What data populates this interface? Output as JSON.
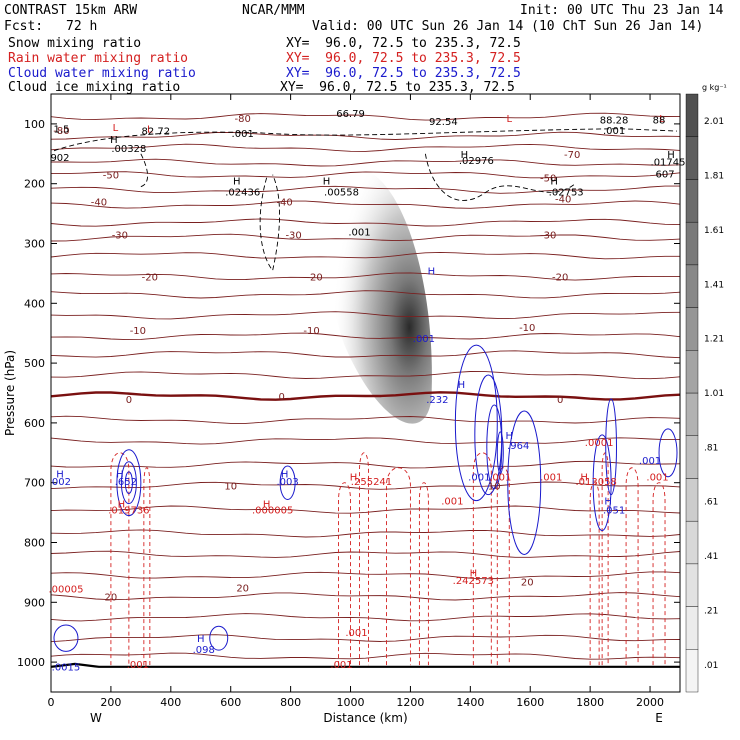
{
  "header": {
    "model": "CONTRAST 15km ARW",
    "center": "NCAR/MMM",
    "init": "Init: 00 UTC Thu 23 Jan 14",
    "fcst_label": "Fcst:",
    "fcst_value": "72 h",
    "valid": "Valid: 00 UTC Sun 26 Jan 14 (10 ChT Sun 26 Jan 14)"
  },
  "fields": [
    {
      "name": "Snow mixing ratio",
      "xy": "XY=  96.0, 72.5 to 235.3, 72.5",
      "color": "#000000"
    },
    {
      "name": "Rain water mixing ratio",
      "xy": "XY=  96.0, 72.5 to 235.3, 72.5",
      "color": "#d42020"
    },
    {
      "name": "Cloud water mixing ratio",
      "xy": "XY=  96.0, 72.5 to 235.3, 72.5",
      "color": "#1a1acc"
    },
    {
      "name": "Cloud ice mixing ratio",
      "xy": "XY=  96.0, 72.5 to 235.3, 72.5",
      "color": "#000000"
    }
  ],
  "chart_data": {
    "type": "contour",
    "xlabel": "Distance (km)",
    "ylabel": "Pressure (hPa)",
    "xlim": [
      0,
      2100
    ],
    "ylim": [
      1050,
      50
    ],
    "x_ticks": [
      0,
      200,
      400,
      600,
      800,
      1000,
      1200,
      1400,
      1600,
      1800,
      2000
    ],
    "y_ticks": [
      100,
      200,
      300,
      400,
      500,
      600,
      700,
      800,
      900,
      1000
    ],
    "x_end_labels": {
      "left": "W",
      "right": "E"
    },
    "colorbar": {
      "unit": "g kg⁻¹",
      "labels": [
        ".01",
        ".21",
        ".41",
        ".61",
        ".81",
        "1.01",
        "1.21",
        "1.41",
        "1.61",
        "1.81",
        "2.01"
      ],
      "colors": [
        "#f4f4f4",
        "#ececec",
        "#e2e2e2",
        "#d8d8d8",
        "#cccccc",
        "#c0c0c0",
        "#b2b2b2",
        "#a4a4a4",
        "#969696",
        "#888888",
        "#7a7a7a",
        "#6c6c6c",
        "#5e5e5e",
        "#505050"
      ]
    },
    "temperature_labels": [
      {
        "x": 35,
        "p": 110,
        "text": "-80"
      },
      {
        "x": 640,
        "p": 90,
        "text": "-80"
      },
      {
        "x": 1740,
        "p": 150,
        "text": "-70"
      },
      {
        "x": 200,
        "p": 185,
        "text": "-50"
      },
      {
        "x": 160,
        "p": 230,
        "text": "-40"
      },
      {
        "x": 780,
        "p": 230,
        "text": "-40"
      },
      {
        "x": 1660,
        "p": 190,
        "text": "-50"
      },
      {
        "x": 1710,
        "p": 225,
        "text": "-40"
      },
      {
        "x": 230,
        "p": 285,
        "text": "-30"
      },
      {
        "x": 810,
        "p": 285,
        "text": "-30"
      },
      {
        "x": 1660,
        "p": 285,
        "text": "-30"
      },
      {
        "x": 330,
        "p": 355,
        "text": "-20"
      },
      {
        "x": 880,
        "p": 355,
        "text": "-20"
      },
      {
        "x": 1700,
        "p": 355,
        "text": "-20"
      },
      {
        "x": 290,
        "p": 445,
        "text": "-10"
      },
      {
        "x": 870,
        "p": 445,
        "text": "-10"
      },
      {
        "x": 1590,
        "p": 440,
        "text": "-10"
      },
      {
        "x": 260,
        "p": 560,
        "text": "0"
      },
      {
        "x": 770,
        "p": 555,
        "text": "0"
      },
      {
        "x": 1700,
        "p": 560,
        "text": "0"
      },
      {
        "x": 600,
        "p": 705,
        "text": "10"
      },
      {
        "x": 1480,
        "p": 705,
        "text": "10"
      },
      {
        "x": 640,
        "p": 875,
        "text": "20"
      },
      {
        "x": 200,
        "p": 890,
        "text": "20"
      },
      {
        "x": 1590,
        "p": 865,
        "text": "20"
      }
    ],
    "hl_markers": [
      {
        "x": 215,
        "p": 105,
        "type": "L",
        "color": "#d42020"
      },
      {
        "x": 330,
        "p": 108,
        "type": "L",
        "color": "#d42020"
      },
      {
        "x": 210,
        "p": 125,
        "type": "H",
        "color": "#000000"
      },
      {
        "x": 1530,
        "p": 90,
        "type": "L",
        "color": "#d42020"
      },
      {
        "x": 1380,
        "p": 150,
        "type": "H",
        "color": "#000000"
      },
      {
        "x": 2040,
        "p": 90,
        "type": "L",
        "color": "#d42020"
      },
      {
        "x": 2070,
        "p": 150,
        "type": "H",
        "color": "#000000"
      },
      {
        "x": 620,
        "p": 195,
        "type": "H",
        "color": "#000000"
      },
      {
        "x": 920,
        "p": 195,
        "type": "H",
        "color": "#000000"
      },
      {
        "x": 1680,
        "p": 195,
        "type": "H",
        "color": "#000000"
      },
      {
        "x": 1270,
        "p": 345,
        "type": "H",
        "color": "#1a1acc"
      },
      {
        "x": 1370,
        "p": 535,
        "type": "H",
        "color": "#1a1acc"
      },
      {
        "x": 1530,
        "p": 620,
        "type": "H",
        "color": "#1a1acc"
      },
      {
        "x": 30,
        "p": 685,
        "type": "H",
        "color": "#1a1acc"
      },
      {
        "x": 230,
        "p": 685,
        "type": "H",
        "color": "#1a1acc"
      },
      {
        "x": 780,
        "p": 685,
        "type": "H",
        "color": "#1a1acc"
      },
      {
        "x": 1010,
        "p": 690,
        "type": "H",
        "color": "#d42020"
      },
      {
        "x": 1780,
        "p": 690,
        "type": "H",
        "color": "#d42020"
      },
      {
        "x": 1860,
        "p": 730,
        "type": "H",
        "color": "#1a1acc"
      },
      {
        "x": 720,
        "p": 735,
        "type": "H",
        "color": "#d42020"
      },
      {
        "x": 235,
        "p": 735,
        "type": "H",
        "color": "#d42020"
      },
      {
        "x": 1410,
        "p": 850,
        "type": "H",
        "color": "#d42020"
      },
      {
        "x": 500,
        "p": 960,
        "type": "H",
        "color": "#1a1acc"
      }
    ],
    "value_labels": [
      {
        "x": 35,
        "p": 108,
        "text": "1.5",
        "color": "#000000"
      },
      {
        "x": 350,
        "p": 111,
        "text": "82.72",
        "color": "#000000"
      },
      {
        "x": 640,
        "p": 115,
        "text": ".001",
        "color": "#000000"
      },
      {
        "x": 1000,
        "p": 82,
        "text": "66.79",
        "color": "#000000"
      },
      {
        "x": 1310,
        "p": 95,
        "text": "92.54",
        "color": "#000000"
      },
      {
        "x": 1880,
        "p": 110,
        "text": ".001",
        "color": "#000000"
      },
      {
        "x": 1880,
        "p": 93,
        "text": "88.28",
        "color": "#000000"
      },
      {
        "x": 2030,
        "p": 93,
        "text": "88",
        "color": "#000000"
      },
      {
        "x": 260,
        "p": 140,
        "text": ".00328",
        "color": "#000000"
      },
      {
        "x": 30,
        "p": 155,
        "text": "902",
        "color": "#000000"
      },
      {
        "x": 1420,
        "p": 160,
        "text": ".02976",
        "color": "#000000"
      },
      {
        "x": 2060,
        "p": 163,
        "text": ".01745",
        "color": "#000000"
      },
      {
        "x": 2050,
        "p": 183,
        "text": "607",
        "color": "#000000"
      },
      {
        "x": 640,
        "p": 213,
        "text": ".02436",
        "color": "#000000"
      },
      {
        "x": 970,
        "p": 213,
        "text": ".00558",
        "color": "#000000"
      },
      {
        "x": 1720,
        "p": 213,
        "text": ".02753",
        "color": "#000000"
      },
      {
        "x": 1030,
        "p": 280,
        "text": ".001",
        "color": "#000000"
      },
      {
        "x": 1245,
        "p": 458,
        "text": ".001",
        "color": "#1a1acc"
      },
      {
        "x": 1290,
        "p": 560,
        "text": ".232",
        "color": "#1a1acc"
      },
      {
        "x": 1560,
        "p": 637,
        "text": ".964",
        "color": "#1a1acc"
      },
      {
        "x": 1830,
        "p": 632,
        "text": ".0001",
        "color": "#d42020"
      },
      {
        "x": 2000,
        "p": 662,
        "text": ".001",
        "color": "#1a1acc"
      },
      {
        "x": 35,
        "p": 697,
        "text": "002",
        "color": "#1a1acc"
      },
      {
        "x": 250,
        "p": 697,
        "text": ".652",
        "color": "#1a1acc"
      },
      {
        "x": 790,
        "p": 697,
        "text": ".003",
        "color": "#1a1acc"
      },
      {
        "x": 1070,
        "p": 697,
        "text": ".255241",
        "color": "#d42020"
      },
      {
        "x": 1820,
        "p": 697,
        "text": ".013058",
        "color": "#d42020"
      },
      {
        "x": 2025,
        "p": 690,
        "text": ".001",
        "color": "#d42020"
      },
      {
        "x": 1430,
        "p": 690,
        "text": ".001",
        "color": "#1a1acc"
      },
      {
        "x": 1500,
        "p": 690,
        "text": ".001",
        "color": "#d42020"
      },
      {
        "x": 1670,
        "p": 690,
        "text": ".001",
        "color": "#d42020"
      },
      {
        "x": 1340,
        "p": 730,
        "text": ".001",
        "color": "#d42020"
      },
      {
        "x": 1880,
        "p": 745,
        "text": ".051",
        "color": "#1a1acc"
      },
      {
        "x": 260,
        "p": 745,
        "text": ".019736",
        "color": "#d42020"
      },
      {
        "x": 740,
        "p": 745,
        "text": ".000005",
        "color": "#d42020"
      },
      {
        "x": 1410,
        "p": 863,
        "text": ".242573",
        "color": "#d42020"
      },
      {
        "x": 50,
        "p": 877,
        "text": ".00005",
        "color": "#d42020"
      },
      {
        "x": 1020,
        "p": 950,
        "text": ".001",
        "color": "#d42020"
      },
      {
        "x": 510,
        "p": 978,
        "text": ".098",
        "color": "#1a1acc"
      },
      {
        "x": 290,
        "p": 1003,
        "text": ".001",
        "color": "#d42020"
      },
      {
        "x": 970,
        "p": 1003,
        "text": ".001",
        "color": "#d42020"
      },
      {
        "x": 50,
        "p": 1007,
        "text": ".0015",
        "color": "#1a1acc"
      }
    ]
  }
}
